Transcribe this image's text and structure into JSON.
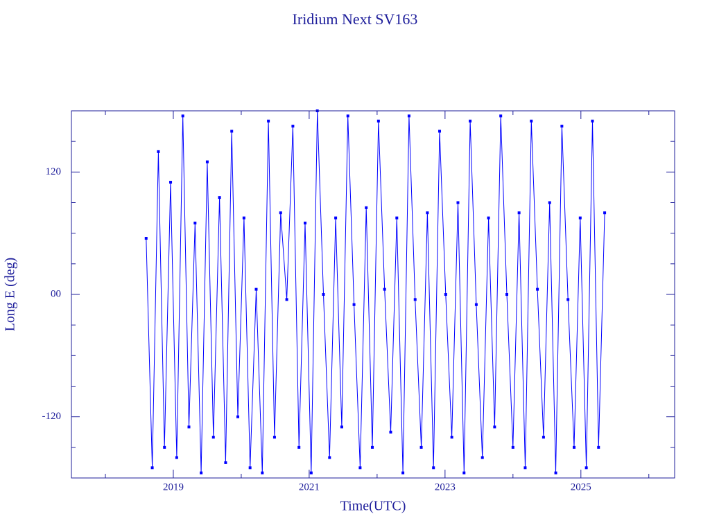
{
  "chart_data": {
    "type": "line",
    "title": "Iridium Next SV163",
    "x_label": "Time(UTC)",
    "y_label": "Long E (deg)",
    "xlim": [
      2017.5,
      2026.38
    ],
    "xticks": [
      2019,
      2021,
      2023,
      2025
    ],
    "xminorticks": [
      2018,
      2020,
      2022,
      2024,
      2026
    ],
    "ylim": [
      -180,
      180
    ],
    "yticks": [
      -120,
      {
        "value": 0,
        "label": "00"
      },
      120
    ],
    "yminorticks": [
      -150,
      -90,
      -60,
      -30,
      30,
      60,
      90,
      150
    ],
    "series": [
      {
        "color": "#0000ff",
        "x": [
          2018.6,
          2018.69,
          2018.78,
          2018.87,
          2018.96,
          2019.05,
          2019.14,
          2019.23,
          2019.32,
          2019.41,
          2019.5,
          2019.59,
          2019.68,
          2019.77,
          2019.86,
          2019.95,
          2020.04,
          2020.13,
          2020.22,
          2020.31,
          2020.4,
          2020.49,
          2020.58,
          2020.67,
          2020.76,
          2020.85,
          2020.94,
          2021.03,
          2021.12,
          2021.21,
          2021.3,
          2021.39,
          2021.48,
          2021.57,
          2021.66,
          2021.75,
          2021.84,
          2021.93,
          2022.02,
          2022.11,
          2022.2,
          2022.29,
          2022.38,
          2022.47,
          2022.56,
          2022.65,
          2022.74,
          2022.83,
          2022.92,
          2023.01,
          2023.1,
          2023.19,
          2023.28,
          2023.37,
          2023.46,
          2023.55,
          2023.64,
          2023.73,
          2023.82,
          2023.91,
          2024.0,
          2024.09,
          2024.18,
          2024.27,
          2024.36,
          2024.45,
          2024.54,
          2024.63,
          2024.72,
          2024.81,
          2024.9,
          2024.99,
          2025.08,
          2025.17,
          2025.26,
          2025.35
        ],
        "values": [
          55,
          -170,
          140,
          -150,
          110,
          -160,
          175,
          -130,
          70,
          -175,
          130,
          -140,
          95,
          -165,
          160,
          -120,
          75,
          -170,
          5,
          -175,
          170,
          -140,
          80,
          -5,
          165,
          -150,
          70,
          -175,
          180,
          0,
          -160,
          75,
          -130,
          175,
          -10,
          -170,
          85,
          -150,
          170,
          5,
          -135,
          75,
          -175,
          175,
          -5,
          -150,
          80,
          -170,
          160,
          0,
          -140,
          90,
          -175,
          170,
          -10,
          -160,
          75,
          -130,
          175,
          0,
          -150,
          80,
          -170,
          170,
          5,
          -140,
          90,
          -175,
          165,
          -5,
          -150,
          75,
          -170,
          170,
          -150,
          80
        ]
      }
    ]
  }
}
